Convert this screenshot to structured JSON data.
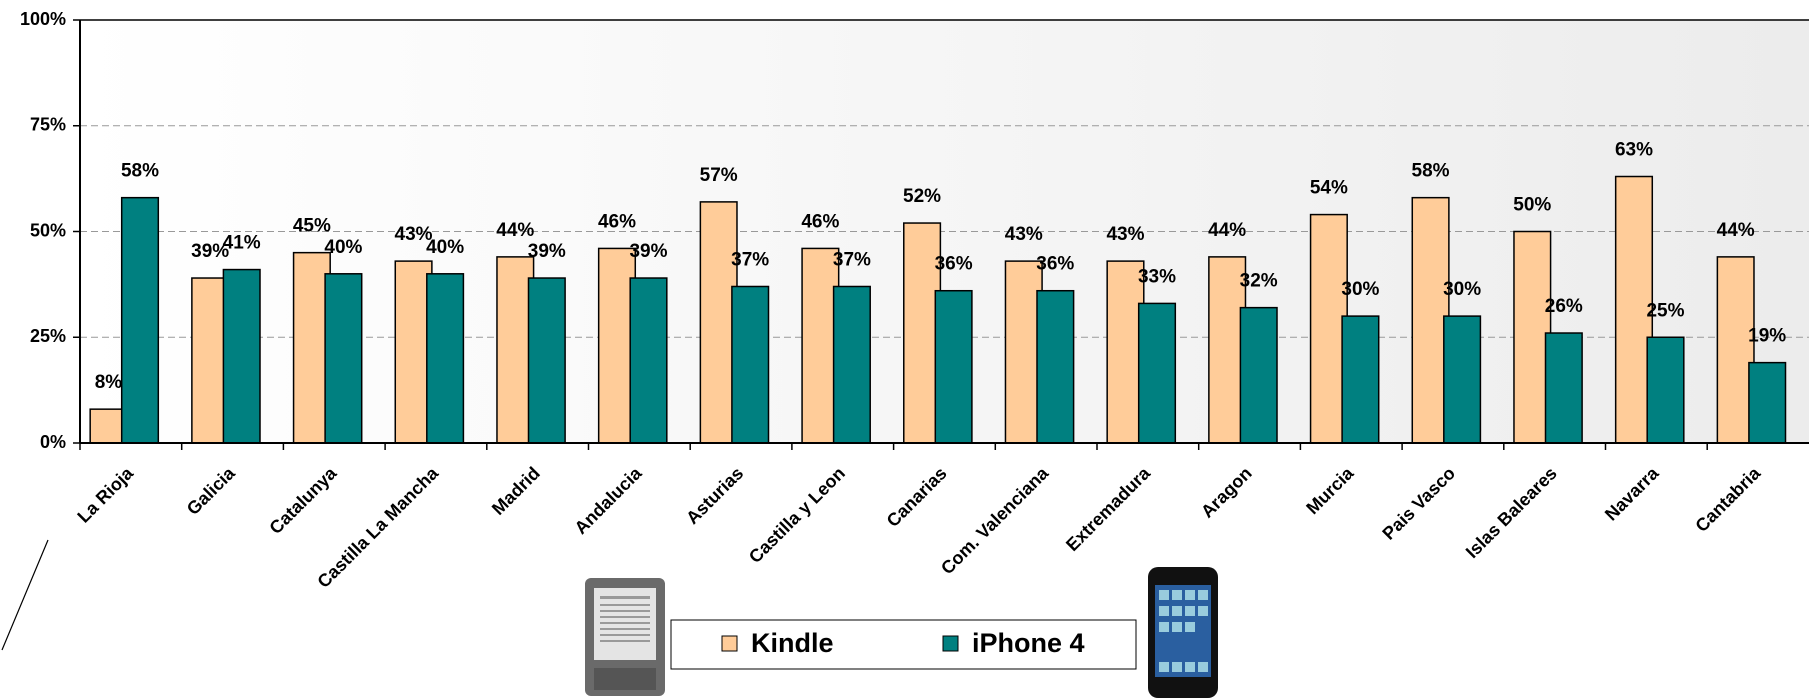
{
  "chart_data": {
    "type": "bar",
    "categories": [
      "La Rioja",
      "Galicia",
      "Catalunya",
      "Castilla La Mancha",
      "Madrid",
      "Andalucia",
      "Asturias",
      "Castilla y Leon",
      "Canarias",
      "Com. Valenciana",
      "Extremadura",
      "Aragon",
      "Murcia",
      "Pais Vasco",
      "Islas Baleares",
      "Navarra",
      "Cantabria"
    ],
    "series": [
      {
        "name": "Kindle",
        "color": "#ffcc99",
        "values": [
          8,
          39,
          45,
          43,
          44,
          46,
          57,
          46,
          52,
          43,
          43,
          44,
          54,
          58,
          50,
          63,
          44
        ],
        "value_labels": [
          "8%",
          "39%",
          "45%",
          "43%",
          "44%",
          "46%",
          "57%",
          "46%",
          "52%",
          "43%",
          "43%",
          "44%",
          "54%",
          "58%",
          "50%",
          "63%",
          "44%"
        ]
      },
      {
        "name": "iPhone 4",
        "color": "#008080",
        "values": [
          58,
          41,
          40,
          40,
          39,
          39,
          37,
          37,
          36,
          36,
          33,
          32,
          30,
          30,
          26,
          25,
          19
        ],
        "value_labels": [
          "58%",
          "41%",
          "40%",
          "40%",
          "39%",
          "39%",
          "37%",
          "37%",
          "36%",
          "36%",
          "33%",
          "32%",
          "30%",
          "30%",
          "26%",
          "25%",
          "19%"
        ]
      }
    ],
    "ylim": [
      0,
      100
    ],
    "yticks": [
      {
        "value": 0,
        "label": "0%"
      },
      {
        "value": 25,
        "label": "25%"
      },
      {
        "value": 50,
        "label": "50%"
      },
      {
        "value": 75,
        "label": "75%"
      },
      {
        "value": 100,
        "label": "100%"
      }
    ],
    "grid": true
  }
}
